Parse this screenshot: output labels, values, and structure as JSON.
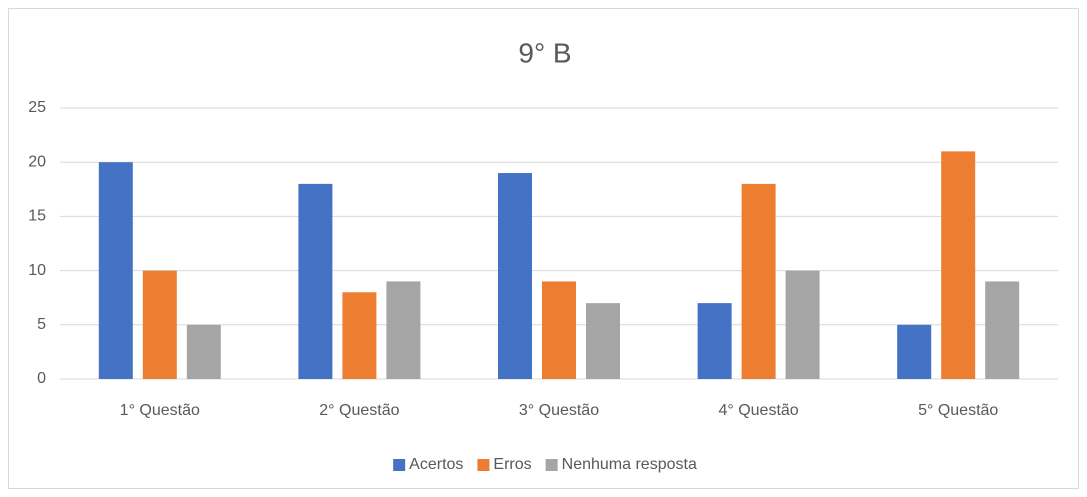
{
  "chart_data": {
    "type": "bar",
    "title": "9° B",
    "categories": [
      "1° Questão",
      "2° Questão",
      "3° Questão",
      "4° Questão",
      "5° Questão"
    ],
    "series": [
      {
        "name": "Acertos",
        "color": "#4472c4",
        "values": [
          20,
          18,
          19,
          7,
          5
        ]
      },
      {
        "name": "Erros",
        "color": "#ed7d31",
        "values": [
          10,
          8,
          9,
          18,
          21
        ]
      },
      {
        "name": "Nenhuma resposta",
        "color": "#a5a5a5",
        "values": [
          5,
          9,
          7,
          10,
          9
        ]
      }
    ],
    "ylim": [
      0,
      25
    ],
    "yticks": [
      0,
      5,
      10,
      15,
      20,
      25
    ],
    "grid": true,
    "legend": "bottom"
  }
}
